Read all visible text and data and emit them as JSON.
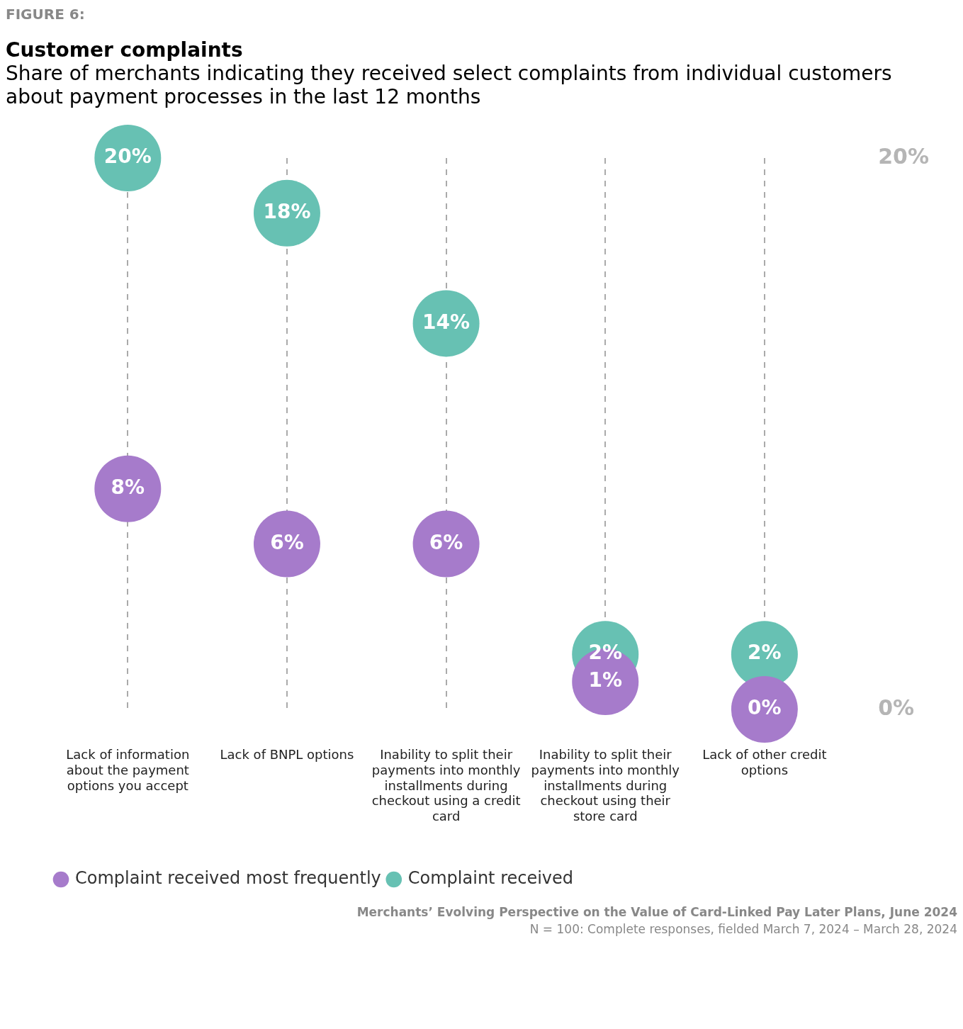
{
  "chart_data": {
    "type": "scatter",
    "title": "Customer complaints",
    "subtitle": "Share of merchants indicating they received select complaints from individual customers about payment processes in the last 12 months",
    "categories": [
      "Lack of information about the payment options you accept",
      "Lack of BNPL options",
      "Inability to split their payments into monthly installments during checkout using a credit card",
      "Inability to split their payments into monthly installments during checkout using their store card",
      "Lack of other credit options"
    ],
    "series": [
      {
        "name": "Complaint received most frequently",
        "color": "#a67bcb",
        "values": [
          8,
          6,
          6,
          1,
          0
        ],
        "value_labels": [
          "8%",
          "6%",
          "6%",
          "1%",
          "0%"
        ]
      },
      {
        "name": "Complaint received",
        "color": "#67c1b3",
        "values": [
          20,
          18,
          14,
          2,
          2
        ],
        "value_labels": [
          "20%",
          "18%",
          "14%",
          "2%",
          "2%"
        ]
      }
    ],
    "ylim": [
      0,
      20
    ],
    "yticks": [
      {
        "value": 0,
        "label": "0%"
      },
      {
        "value": 20,
        "label": "20%"
      }
    ],
    "grid": "x",
    "marker": "circle",
    "legend": "bottom left",
    "annotations": [
      "FIGURE 6:",
      "Merchants’ Evolving Perspective on the Value of Card-Linked Pay Later Plans, June 2024",
      "N = 100: Complete responses, fielded March 7, 2024 – March 28, 2024"
    ]
  }
}
